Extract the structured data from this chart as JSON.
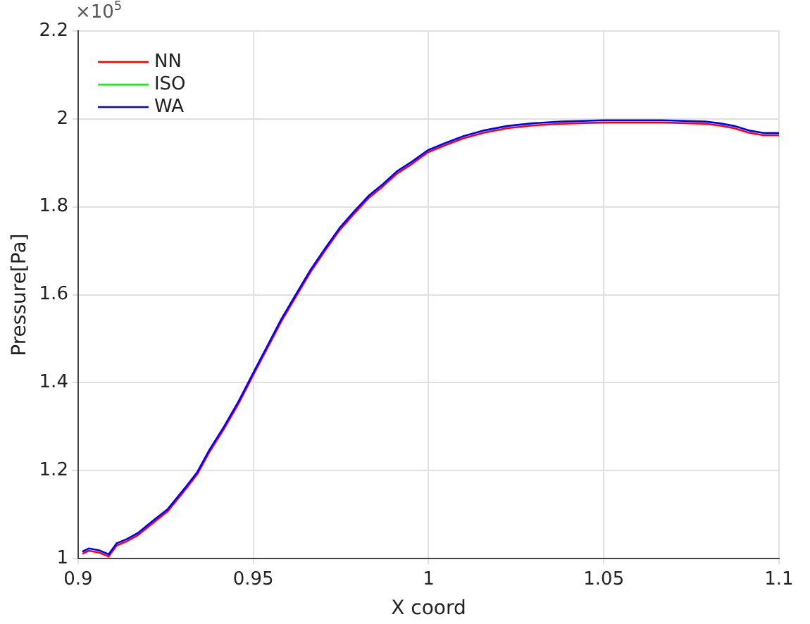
{
  "chart_data": {
    "type": "line",
    "xlabel": "X coord",
    "ylabel": "Pressure[Pa]",
    "annotations": [
      "×10$^{5}$"
    ],
    "x": [
      0.9012,
      0.903,
      0.906,
      0.9087,
      0.911,
      0.914,
      0.917,
      0.921,
      0.9256,
      0.9305,
      0.934,
      0.9375,
      0.9416,
      0.9458,
      0.95,
      0.954,
      0.958,
      0.9623,
      0.9664,
      0.9705,
      0.9746,
      0.9788,
      0.983,
      0.987,
      0.991,
      0.9953,
      0.9998,
      1.0047,
      1.01,
      1.0159,
      1.0225,
      1.0295,
      1.0377,
      1.05,
      1.0666,
      1.079,
      1.0831,
      1.0872,
      1.0913,
      1.0955,
      1.1
    ],
    "series": [
      {
        "name": "NN",
        "color": "#ff0000",
        "values": [
          1.011,
          1.018,
          1.014,
          1.005,
          1.03,
          1.04,
          1.053,
          1.079,
          1.108,
          1.156,
          1.192,
          1.243,
          1.295,
          1.353,
          1.418,
          1.479,
          1.54,
          1.598,
          1.653,
          1.701,
          1.747,
          1.785,
          1.821,
          1.847,
          1.876,
          1.898,
          1.924,
          1.94,
          1.956,
          1.969,
          1.979,
          1.985,
          1.989,
          1.992,
          1.992,
          1.989,
          1.985,
          1.979,
          1.969,
          1.963,
          1.963
        ]
      },
      {
        "name": "ISO",
        "color": "#00ff00",
        "values": [
          null,
          null,
          null,
          null,
          null,
          null,
          null,
          null,
          null,
          null,
          null,
          null,
          null,
          null,
          null,
          null,
          null,
          null,
          null,
          null,
          null,
          null,
          null,
          null,
          null,
          null,
          null,
          null,
          null,
          null,
          null,
          null,
          null,
          null,
          null,
          null,
          null,
          null,
          null,
          null,
          null
        ]
      },
      {
        "name": "WA",
        "color": "#0000ff",
        "values": [
          1.016,
          1.023,
          1.019,
          1.01,
          1.035,
          1.045,
          1.058,
          1.084,
          1.113,
          1.161,
          1.197,
          1.248,
          1.3,
          1.358,
          1.423,
          1.484,
          1.545,
          1.603,
          1.658,
          1.706,
          1.752,
          1.79,
          1.826,
          1.852,
          1.881,
          1.903,
          1.929,
          1.945,
          1.961,
          1.974,
          1.984,
          1.99,
          1.994,
          1.997,
          1.997,
          1.994,
          1.99,
          1.984,
          1.974,
          1.968,
          1.968
        ]
      }
    ],
    "xlim": [
      0.9,
      1.1
    ],
    "xticks": [
      0.9,
      0.95,
      1,
      1.05,
      1.1
    ],
    "ylim": [
      1,
      2.2
    ],
    "yticks": [
      1,
      1.2,
      1.4,
      1.6,
      1.8,
      2,
      2.2
    ],
    "grid": true,
    "legend": "top left",
    "marker": "none",
    "line_style": "solid"
  }
}
